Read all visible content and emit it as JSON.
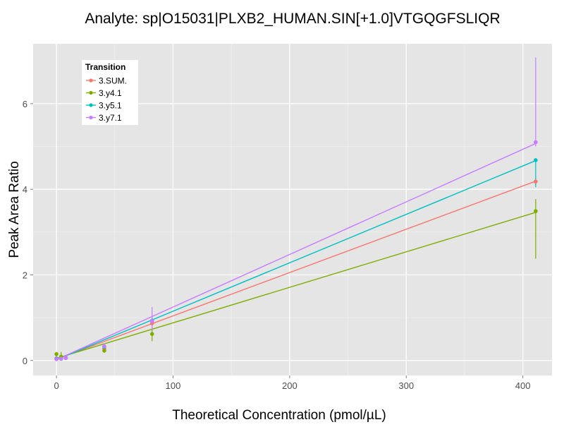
{
  "chart_data": {
    "type": "scatter",
    "title": "Analyte: sp|O15031|PLXB2_HUMAN.SIN[+1.0]VTGQGFSLIQR",
    "xlabel": "Theoretical Concentration (pmol/µL)",
    "ylabel": "Peak Area Ratio",
    "xlim": [
      -20,
      425
    ],
    "ylim": [
      -0.35,
      7.4
    ],
    "xticks": [
      0,
      100,
      200,
      300,
      400
    ],
    "xtick_labels": [
      "0",
      "100",
      "200",
      "300",
      "400"
    ],
    "yticks": [
      0,
      2,
      4,
      6
    ],
    "ytick_labels": [
      "0",
      "2",
      "4",
      "6"
    ],
    "grid": true,
    "legend": {
      "title": "Transition",
      "position": "top-left"
    },
    "series": [
      {
        "name": "3.SUM.",
        "color": "#F8766D",
        "fit": [
          [
            0,
            0.03
          ],
          [
            411,
            4.19
          ]
        ],
        "points": [
          {
            "x": 0,
            "y": 0.05,
            "lo": 0.02,
            "hi": 0.09
          },
          {
            "x": 4,
            "y": 0.05,
            "lo": 0.03,
            "hi": 0.08
          },
          {
            "x": 8,
            "y": 0.07,
            "lo": 0.05,
            "hi": 0.09
          },
          {
            "x": 41,
            "y": 0.28,
            "lo": 0.22,
            "hi": 0.34
          },
          {
            "x": 82,
            "y": 0.87,
            "lo": 0.8,
            "hi": 0.95
          },
          {
            "x": 411,
            "y": 4.18,
            "lo": 4.1,
            "hi": 4.25
          }
        ]
      },
      {
        "name": "3.y4.1",
        "color": "#7CAE00",
        "fit": [
          [
            0,
            0.05
          ],
          [
            411,
            3.46
          ]
        ],
        "points": [
          {
            "x": 0,
            "y": 0.15,
            "lo": 0.05,
            "hi": 0.2
          },
          {
            "x": 4,
            "y": 0.09,
            "lo": 0.0,
            "hi": 0.2
          },
          {
            "x": 8,
            "y": 0.06,
            "lo": 0.03,
            "hi": 0.09
          },
          {
            "x": 41,
            "y": 0.23,
            "lo": 0.18,
            "hi": 0.3
          },
          {
            "x": 82,
            "y": 0.62,
            "lo": 0.45,
            "hi": 0.78
          },
          {
            "x": 411,
            "y": 3.49,
            "lo": 2.38,
            "hi": 3.77
          }
        ]
      },
      {
        "name": "3.y5.1",
        "color": "#00BFC4",
        "fit": [
          [
            0,
            0.02
          ],
          [
            411,
            4.67
          ]
        ],
        "points": [
          {
            "x": 0,
            "y": 0.04,
            "lo": 0.02,
            "hi": 0.07
          },
          {
            "x": 4,
            "y": 0.04,
            "lo": 0.02,
            "hi": 0.07
          },
          {
            "x": 8,
            "y": 0.06,
            "lo": 0.04,
            "hi": 0.08
          },
          {
            "x": 41,
            "y": 0.32,
            "lo": 0.26,
            "hi": 0.38
          },
          {
            "x": 82,
            "y": 0.93,
            "lo": 0.86,
            "hi": 1.0
          },
          {
            "x": 411,
            "y": 4.68,
            "lo": 4.05,
            "hi": 4.72
          }
        ]
      },
      {
        "name": "3.y7.1",
        "color": "#C77CFF",
        "fit": [
          [
            0,
            0.02
          ],
          [
            411,
            5.07
          ]
        ],
        "points": [
          {
            "x": 0,
            "y": 0.03,
            "lo": 0.01,
            "hi": 0.06
          },
          {
            "x": 4,
            "y": 0.04,
            "lo": 0.02,
            "hi": 0.06
          },
          {
            "x": 8,
            "y": 0.06,
            "lo": 0.04,
            "hi": 0.08
          },
          {
            "x": 41,
            "y": 0.33,
            "lo": 0.27,
            "hi": 0.4
          },
          {
            "x": 82,
            "y": 0.92,
            "lo": 0.7,
            "hi": 1.25
          },
          {
            "x": 411,
            "y": 5.1,
            "lo": 5.0,
            "hi": 7.08
          }
        ]
      }
    ]
  }
}
